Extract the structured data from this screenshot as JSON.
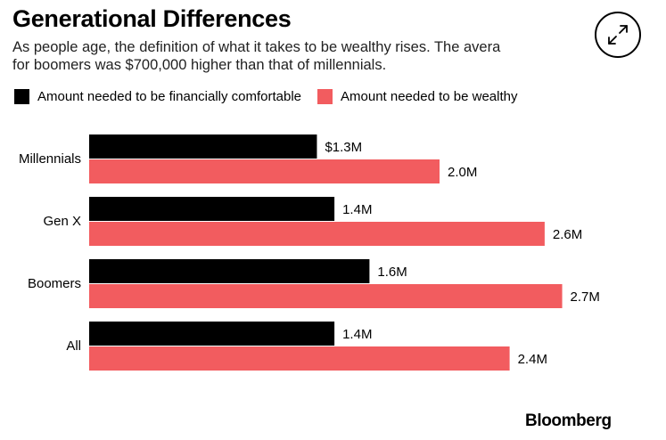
{
  "title": "Generational Differences",
  "subtitle_lines": [
    "As people age, the definition of what it takes to be wealthy rises. The avera",
    "for boomers was $700,000 higher than that of millennials."
  ],
  "brand": "Bloomberg",
  "expand_icon": "expand-arrows-icon",
  "colors": {
    "comfortable": "#000000",
    "wealthy": "#f25c5f"
  },
  "chart_data": {
    "type": "bar",
    "orientation": "horizontal",
    "categories": [
      "Millennials",
      "Gen X",
      "Boomers",
      "All"
    ],
    "series": [
      {
        "name": "Amount needed to be financially comfortable",
        "values": [
          1.3,
          1.4,
          1.6,
          1.4
        ],
        "labels": [
          "$1.3M",
          "1.4M",
          "1.6M",
          "1.4M"
        ]
      },
      {
        "name": "Amount needed to be wealthy",
        "values": [
          2.0,
          2.6,
          2.7,
          2.4
        ],
        "labels": [
          "2.0M",
          "2.6M",
          "2.7M",
          "2.4M"
        ]
      }
    ],
    "legend": "top-left",
    "grid": false
  }
}
